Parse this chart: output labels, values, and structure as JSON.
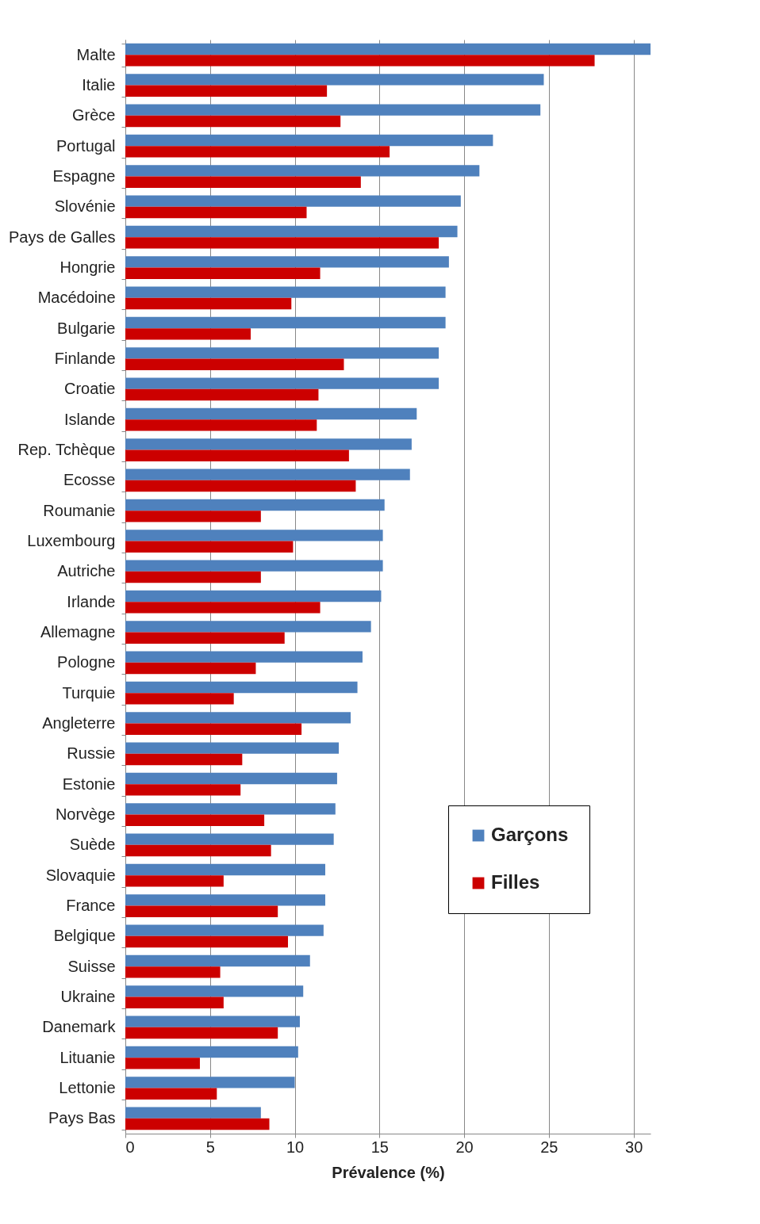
{
  "chart_data": {
    "type": "bar",
    "orientation": "horizontal",
    "xlabel": "Prévalence (%)",
    "categories": [
      "Malte",
      "Italie",
      "Grèce",
      "Portugal",
      "Espagne",
      "Slovénie",
      "Pays de Galles",
      "Hongrie",
      "Macédoine",
      "Bulgarie",
      "Finlande",
      "Croatie",
      "Islande",
      "Rep. Tchèque",
      "Ecosse",
      "Roumanie",
      "Luxembourg",
      "Autriche",
      "Irlande",
      "Allemagne",
      "Pologne",
      "Turquie",
      "Angleterre",
      "Russie",
      "Estonie",
      "Norvège",
      "Suède",
      "Slovaquie",
      "France",
      "Belgique",
      "Suisse",
      "Ukraine",
      "Danemark",
      "Lituanie",
      "Lettonie",
      "Pays Bas"
    ],
    "series": [
      {
        "name": "Garçons",
        "color": "#4f81bd",
        "values": [
          31.0,
          24.7,
          24.5,
          21.7,
          20.9,
          19.8,
          19.6,
          19.1,
          18.9,
          18.9,
          18.5,
          18.5,
          17.2,
          16.9,
          16.8,
          15.3,
          15.2,
          15.2,
          15.1,
          14.5,
          14.0,
          13.7,
          13.3,
          12.6,
          12.5,
          12.4,
          12.3,
          11.8,
          11.8,
          11.7,
          10.9,
          10.5,
          10.3,
          10.2,
          10.0,
          8.0
        ]
      },
      {
        "name": "Filles",
        "color": "#cc0000",
        "values": [
          27.7,
          11.9,
          12.7,
          15.6,
          13.9,
          10.7,
          18.5,
          11.5,
          9.8,
          7.4,
          12.9,
          11.4,
          11.3,
          13.2,
          13.6,
          8.0,
          9.9,
          8.0,
          11.5,
          9.4,
          7.7,
          6.4,
          10.4,
          6.9,
          6.8,
          8.2,
          8.6,
          5.8,
          9.0,
          9.6,
          5.6,
          5.8,
          9.0,
          4.4,
          5.4,
          8.5
        ]
      }
    ],
    "xlim": [
      0,
      31
    ],
    "xticks": [
      0,
      5,
      10,
      15,
      20,
      25,
      30
    ],
    "grid": "x",
    "legend": "right"
  }
}
